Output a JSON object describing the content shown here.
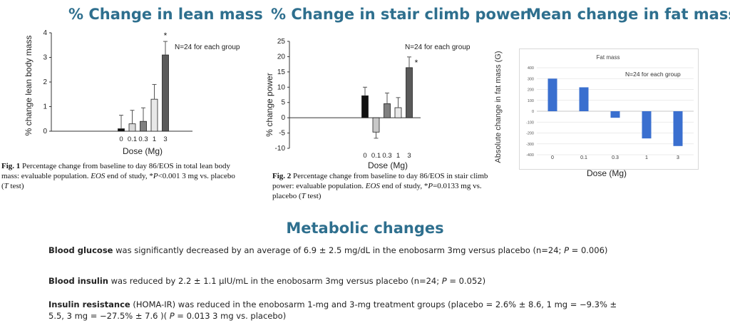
{
  "headings": {
    "lean": "% Change in lean mass",
    "stair": "% Change in stair climb power",
    "fat": "Mean change in fat mass"
  },
  "captions": {
    "fig1_label": "Fig. 1",
    "fig1_text_a": "Percentage change from baseline to day 86/EOS in total lean body mass: evaluable population.",
    "fig1_eos": "EOS",
    "fig1_text_b": "end of study, *",
    "fig1_p": "P",
    "fig1_text_c": "<0.001 3 mg vs. placebo (",
    "fig1_t": "T",
    "fig1_text_d": "test)",
    "fig2_label": "Fig. 2",
    "fig2_text_a": "Percentage change from baseline to day 86/EOS in stair climb power: evaluable population.",
    "fig2_eos": "EOS",
    "fig2_text_b": "end of study, *",
    "fig2_p": "P",
    "fig2_text_c": "=0.0133 mg vs. placebo (",
    "fig2_t": "T",
    "fig2_text_d": "test)"
  },
  "metabolic": {
    "title": "Metabolic changes",
    "glucose_bold": "Blood glucose",
    "glucose_text": " was significantly decreased by an average of 6.9 ± 2.5 mg/dL in the enobosarm 3mg versus placebo (n=24; ",
    "glucose_p": "P",
    "glucose_tail": " = 0.006)",
    "insulin_bold": "Blood insulin",
    "insulin_text": " was reduced by 2.2 ± 1.1 µIU/mL in the enobosarm 3mg versus placebo (n=24; ",
    "insulin_p": "P",
    "insulin_tail": " = 0.052)",
    "resist_bold": "Insulin resistance",
    "resist_text": " (HOMA-IR) was reduced in the enobosarm 1-mg and 3-mg treatment groups (placebo = 2.6% ± 8.6, 1 mg = −9.3% ± 5.5, 3 mg = −27.5% ± 7.6 )( ",
    "resist_p": "P",
    "resist_tail": " = 0.013 3 mg vs. placebo)"
  },
  "chart_data": [
    {
      "type": "bar",
      "title": "",
      "xlabel": "Dose (Mg)",
      "ylabel": "% change lean body mass",
      "annotation": "N=24 for each group",
      "categories": [
        "0",
        "0.1",
        "0.3",
        "1",
        "3"
      ],
      "values": [
        0.1,
        0.3,
        0.4,
        1.3,
        3.1
      ],
      "errors": [
        0.55,
        0.55,
        0.55,
        0.6,
        0.55
      ],
      "significance": [
        "",
        "",
        "",
        "",
        "*"
      ],
      "bar_colors": [
        "#111111",
        "#d9d9d9",
        "#808080",
        "#e8e8e8",
        "#5a5a5a"
      ],
      "ylim": [
        0,
        4
      ],
      "yticks": [
        "0",
        "1",
        "2",
        "3",
        "4"
      ]
    },
    {
      "type": "bar",
      "title": "",
      "xlabel": "Dose (Mg)",
      "ylabel": "% change power",
      "annotation": "N=24 for each group",
      "categories": [
        "0",
        "0.1",
        "0.3",
        "1",
        "3"
      ],
      "values": [
        7.2,
        -4.7,
        4.6,
        3.3,
        16.4
      ],
      "errors": [
        2.8,
        2.0,
        3.5,
        3.3,
        3.5
      ],
      "significance": [
        "",
        "",
        "",
        "",
        "*"
      ],
      "bar_colors": [
        "#111111",
        "#c8c8c8",
        "#808080",
        "#e8e8e8",
        "#5a5a5a"
      ],
      "ylim": [
        -10,
        25
      ],
      "yticks": [
        "-10",
        "-5",
        "0",
        "5",
        "10",
        "15",
        "20",
        "25"
      ]
    },
    {
      "type": "bar",
      "title": "Fat mass",
      "xlabel": "Dose (Mg)",
      "ylabel": "Absolute change in fat mass (G)",
      "annotation": "N=24 for each group",
      "categories": [
        "0",
        "0.1",
        "0.3",
        "1",
        "3"
      ],
      "values": [
        300,
        220,
        -60,
        -250,
        -320
      ],
      "bar_colors": [
        "#3a6fcf",
        "#3a6fcf",
        "#3a6fcf",
        "#3a6fcf",
        "#3a6fcf"
      ],
      "ylim": [
        -400,
        400
      ],
      "yticks": [
        "400",
        "300",
        "200",
        "100",
        "0",
        "-100",
        "-200",
        "-300",
        "-400"
      ],
      "grid": true
    }
  ]
}
